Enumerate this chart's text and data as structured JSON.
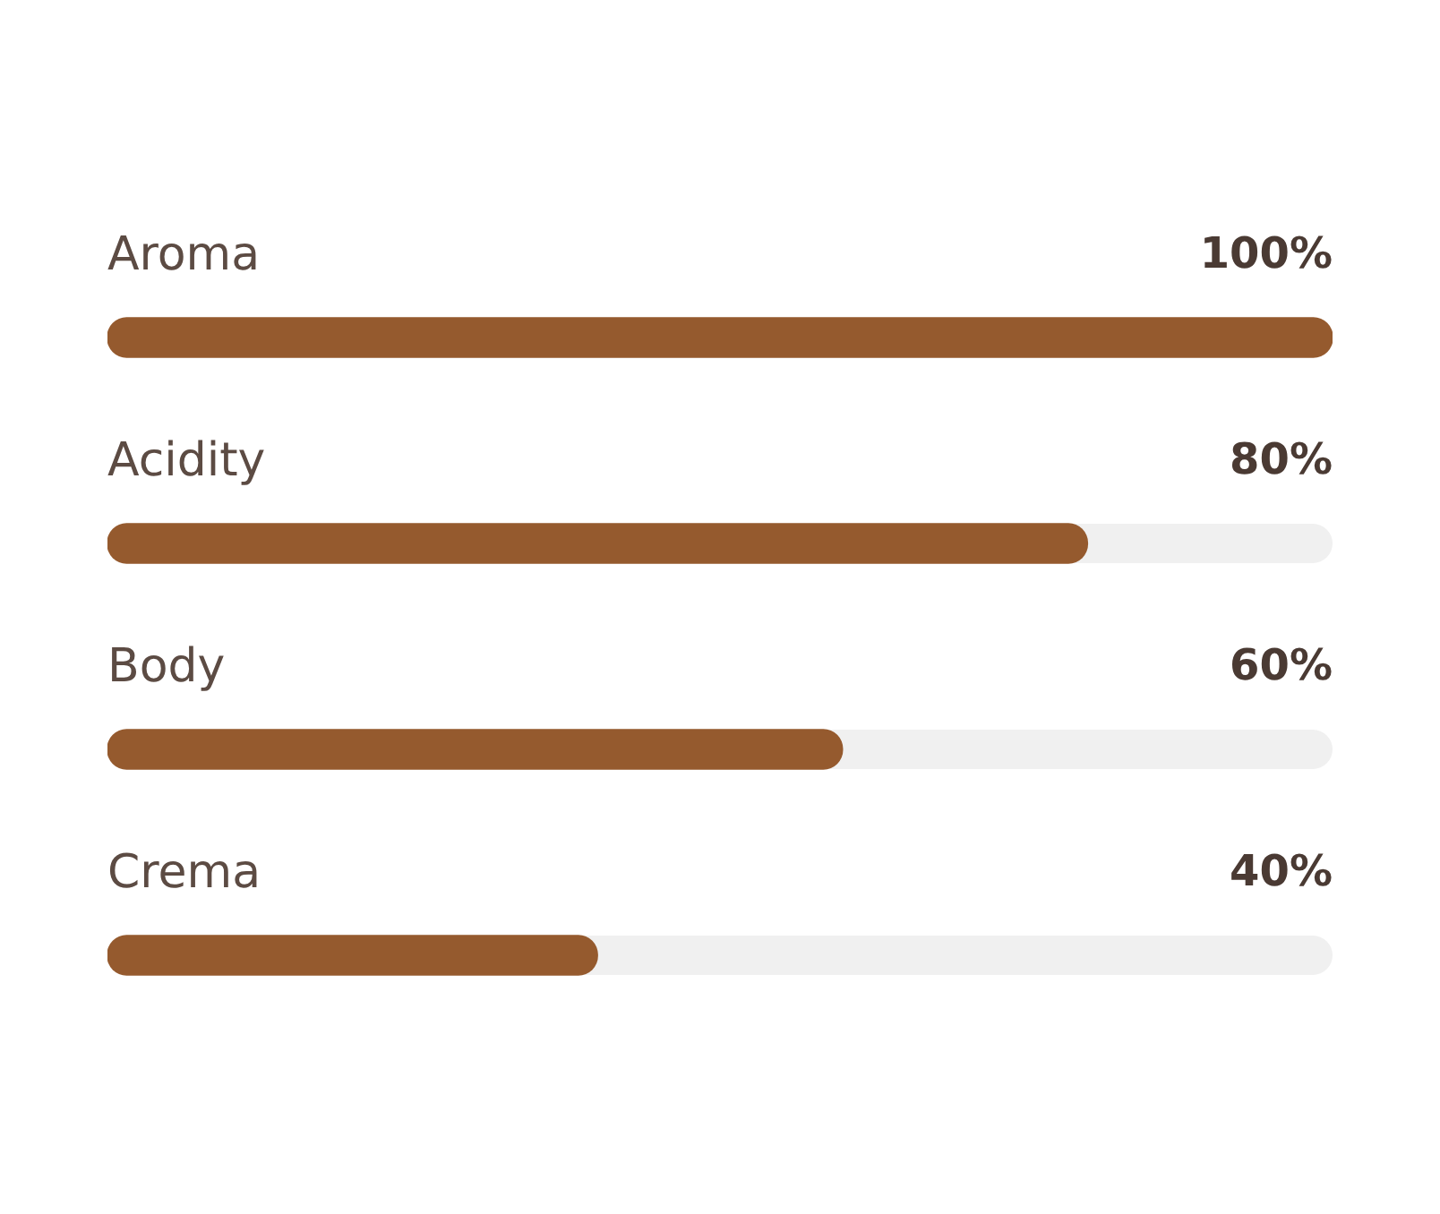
{
  "chart_data": {
    "type": "bar",
    "orientation": "horizontal",
    "categories": [
      "Aroma",
      "Acidity",
      "Body",
      "Crema"
    ],
    "values": [
      100,
      80,
      60,
      40
    ],
    "value_labels": [
      "100%",
      "80%",
      "60%",
      "40%"
    ],
    "color": "#955a2e",
    "xlim": [
      0,
      100
    ],
    "tick_labels": "y"
  }
}
